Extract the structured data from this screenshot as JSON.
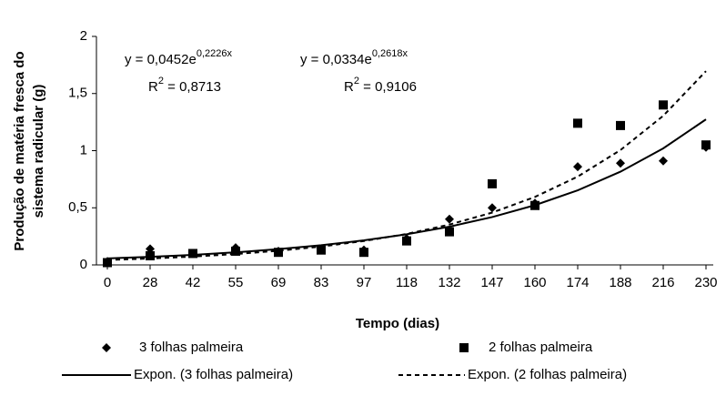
{
  "chart_data": {
    "type": "line",
    "x_label": "Tempo (dias)",
    "y_label": [
      "Produção de matéria fresca do",
      "sistema radicular (g)"
    ],
    "categories": [
      "0",
      "28",
      "42",
      "55",
      "69",
      "83",
      "97",
      "118",
      "132",
      "147",
      "160",
      "174",
      "188",
      "216",
      "230"
    ],
    "ylim": [
      0,
      2
    ],
    "yticks": [
      0,
      {
        "value": 0.5,
        "label": "0,5"
      },
      1,
      {
        "value": 1.5,
        "label": "1,5"
      },
      2
    ],
    "series": [
      {
        "name": "3 folhas palmeira",
        "color": "#000000",
        "marker": "diamond",
        "line": "none",
        "values": [
          0.03,
          0.14,
          0.1,
          0.15,
          0.12,
          0.14,
          0.13,
          0.23,
          0.4,
          0.5,
          0.54,
          0.86,
          0.89,
          0.91,
          1.03
        ]
      },
      {
        "name": "2 folhas palmeira",
        "color": "#000000",
        "marker": "square",
        "line": "none",
        "values": [
          0.02,
          0.08,
          0.1,
          0.12,
          0.11,
          0.13,
          0.11,
          0.21,
          0.29,
          0.71,
          0.52,
          1.24,
          1.22,
          1.4,
          1.05
        ]
      },
      {
        "name": "Expon. (3 folhas palmeira)",
        "color": "#000000",
        "marker": "none",
        "line": "solid",
        "values": [
          0.057,
          0.071,
          0.088,
          0.11,
          0.138,
          0.172,
          0.215,
          0.268,
          0.335,
          0.419,
          0.523,
          0.653,
          0.816,
          1.02,
          1.274
        ]
      },
      {
        "name": "Expon. (2 folhas palmeira)",
        "color": "#000000",
        "marker": "none",
        "line": "dashed",
        "values": [
          0.043,
          0.056,
          0.073,
          0.095,
          0.124,
          0.161,
          0.209,
          0.271,
          0.353,
          0.458,
          0.595,
          0.773,
          1.005,
          1.305,
          1.696
        ]
      }
    ],
    "annotations": [
      {
        "text": "y = 0,0452e",
        "sup": "0,2226x"
      },
      {
        "text": "R",
        "sup": "2",
        "rest": " = 0,8713"
      },
      {
        "text": "y = 0,0334e",
        "sup": "0,2618x"
      },
      {
        "text": "R",
        "sup": "2",
        "rest": " = 0,9106"
      }
    ]
  }
}
